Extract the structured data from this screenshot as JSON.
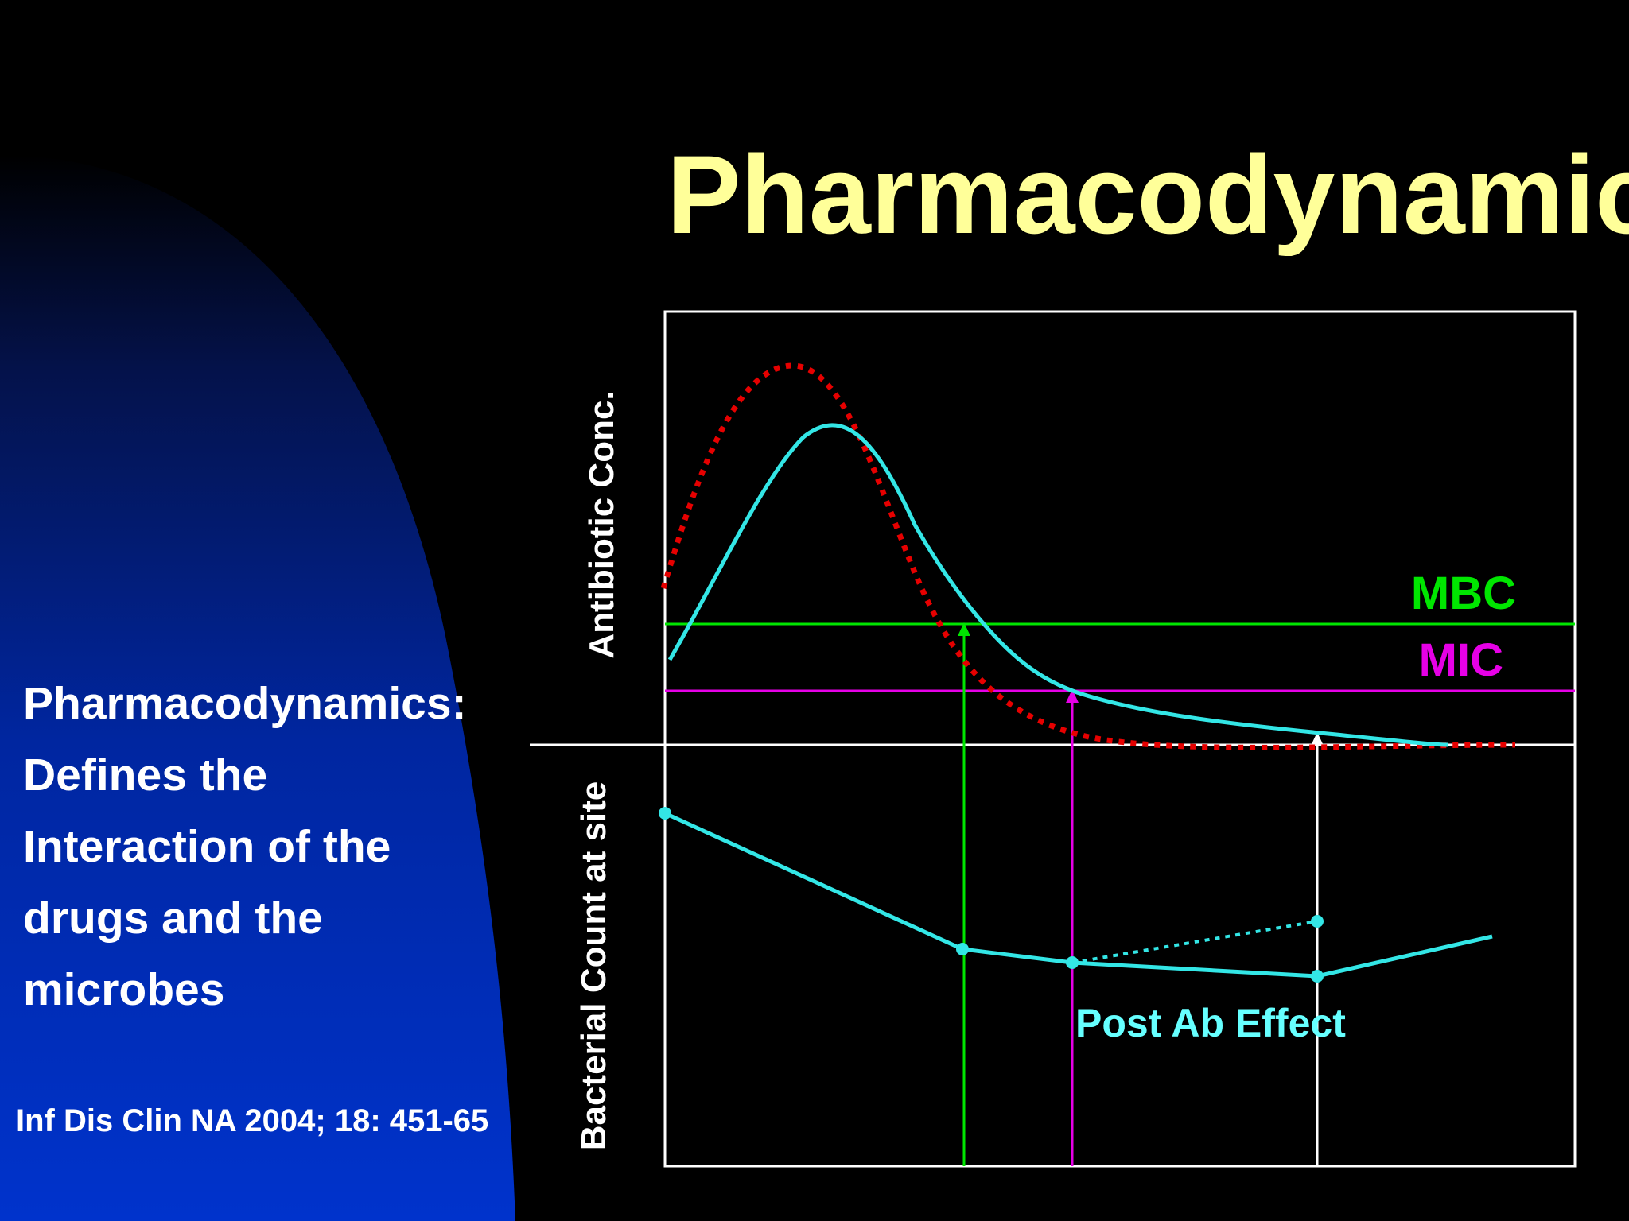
{
  "slide": {
    "title": "Pharmacodynamics",
    "side_lines": [
      "Pharmacodynamics:",
      "Defines the",
      "Interaction of the",
      "drugs and the",
      "microbes"
    ],
    "citation": "Inf Dis Clin NA 2004; 18: 451-65"
  },
  "diagram": {
    "y_axis_top_label": "Antibiotic Conc.",
    "y_axis_bottom_label": "Bacterial Count at site",
    "mbc_label": "MBC",
    "mic_label": "MIC",
    "post_effect_label": "Post Ab Effect"
  },
  "colors": {
    "background": "#000000",
    "gradient_blue": "#0033cc",
    "title": "#ffff99",
    "body_text": "#ffffff",
    "cyan_curve": "#33e6e6",
    "red_dotted_curve": "#e60000",
    "mbc": "#00e600",
    "mic": "#e600e6",
    "post_effect": "#66ffff",
    "axes": "#ffffff"
  }
}
